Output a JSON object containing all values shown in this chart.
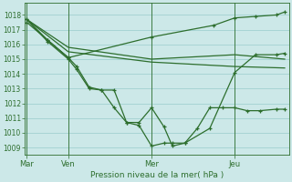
{
  "title": "Pression niveau de la mer( hPa )",
  "bg_color": "#cce8e8",
  "grid_color": "#99cccc",
  "line_color": "#2d6e2d",
  "ylim": [
    1008.5,
    1018.8
  ],
  "yticks": [
    1009,
    1010,
    1011,
    1012,
    1013,
    1014,
    1015,
    1016,
    1017,
    1018
  ],
  "day_positions": [
    0.0,
    1.0,
    3.0,
    5.0
  ],
  "day_labels": [
    "Mar",
    "Ven",
    "Mer",
    "Jeu"
  ],
  "xlim": [
    -0.05,
    6.3
  ],
  "series": [
    {
      "x": [
        0.0,
        1.0,
        3.0,
        5.0,
        6.2
      ],
      "y": [
        1017.7,
        1015.8,
        1015.0,
        1015.3,
        1015.0
      ],
      "marker": null,
      "lw": 0.9
    },
    {
      "x": [
        0.0,
        1.0,
        3.0,
        5.0,
        6.2
      ],
      "y": [
        1017.7,
        1015.5,
        1014.8,
        1014.5,
        1014.4
      ],
      "marker": null,
      "lw": 0.9
    },
    {
      "x": [
        0.0,
        0.5,
        1.0,
        3.0,
        4.5,
        5.0,
        5.5,
        6.0,
        6.2
      ],
      "y": [
        1017.7,
        1016.3,
        1015.1,
        1016.5,
        1017.3,
        1017.8,
        1017.9,
        1018.0,
        1018.2
      ],
      "marker": "+",
      "lw": 0.9
    },
    {
      "x": [
        0.0,
        0.5,
        1.0,
        1.2,
        1.5,
        1.8,
        2.1,
        2.4,
        2.7,
        3.0,
        3.3,
        3.5,
        3.8,
        4.1,
        4.4,
        4.7,
        5.0,
        5.3,
        5.6,
        6.0,
        6.2
      ],
      "y": [
        1017.5,
        1016.3,
        1015.1,
        1014.5,
        1013.1,
        1012.9,
        1012.9,
        1010.7,
        1010.7,
        1011.7,
        1010.4,
        1009.1,
        1009.3,
        1010.3,
        1011.7,
        1011.7,
        1011.7,
        1011.5,
        1011.5,
        1011.6,
        1011.6
      ],
      "marker": "+",
      "lw": 0.9
    },
    {
      "x": [
        0.0,
        0.5,
        1.0,
        1.2,
        1.5,
        1.8,
        2.1,
        2.4,
        2.7,
        3.0,
        3.3,
        3.5,
        3.8,
        4.4,
        5.0,
        5.5,
        6.0,
        6.2
      ],
      "y": [
        1017.7,
        1016.2,
        1015.0,
        1014.3,
        1013.0,
        1012.9,
        1011.7,
        1010.7,
        1010.5,
        1009.1,
        1009.3,
        1009.3,
        1009.3,
        1010.3,
        1014.1,
        1015.3,
        1015.3,
        1015.4
      ],
      "marker": "+",
      "lw": 0.9
    }
  ]
}
